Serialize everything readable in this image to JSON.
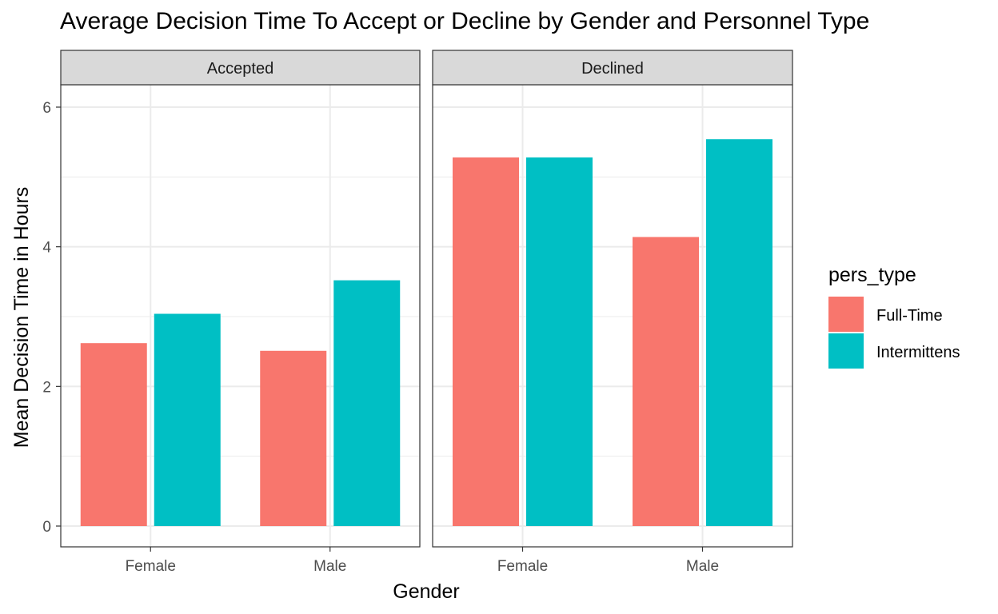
{
  "chart_data": {
    "type": "bar",
    "title": "Average Decision Time To Accept or Decline by Gender and Personnel Type",
    "xlabel": "Gender",
    "ylabel": "Mean Decision Time in Hours",
    "ylim": [
      0,
      6.5
    ],
    "yticks": [
      "0",
      "2",
      "4",
      "6"
    ],
    "grid": true,
    "legend": {
      "title": "pers_type",
      "position": "right"
    },
    "categories": [
      "Female",
      "Male"
    ],
    "facets": [
      {
        "label": "Accepted",
        "series": [
          {
            "name": "Full-Time",
            "color": "#F8766D",
            "values": [
              2.62,
              2.51
            ]
          },
          {
            "name": "Intermittens",
            "color": "#00BFC4",
            "values": [
              3.04,
              3.52
            ]
          }
        ]
      },
      {
        "label": "Declined",
        "series": [
          {
            "name": "Full-Time",
            "color": "#F8766D",
            "values": [
              5.28,
              4.14
            ]
          },
          {
            "name": "Intermittens",
            "color": "#00BFC4",
            "values": [
              5.28,
              5.54
            ]
          }
        ]
      }
    ]
  }
}
